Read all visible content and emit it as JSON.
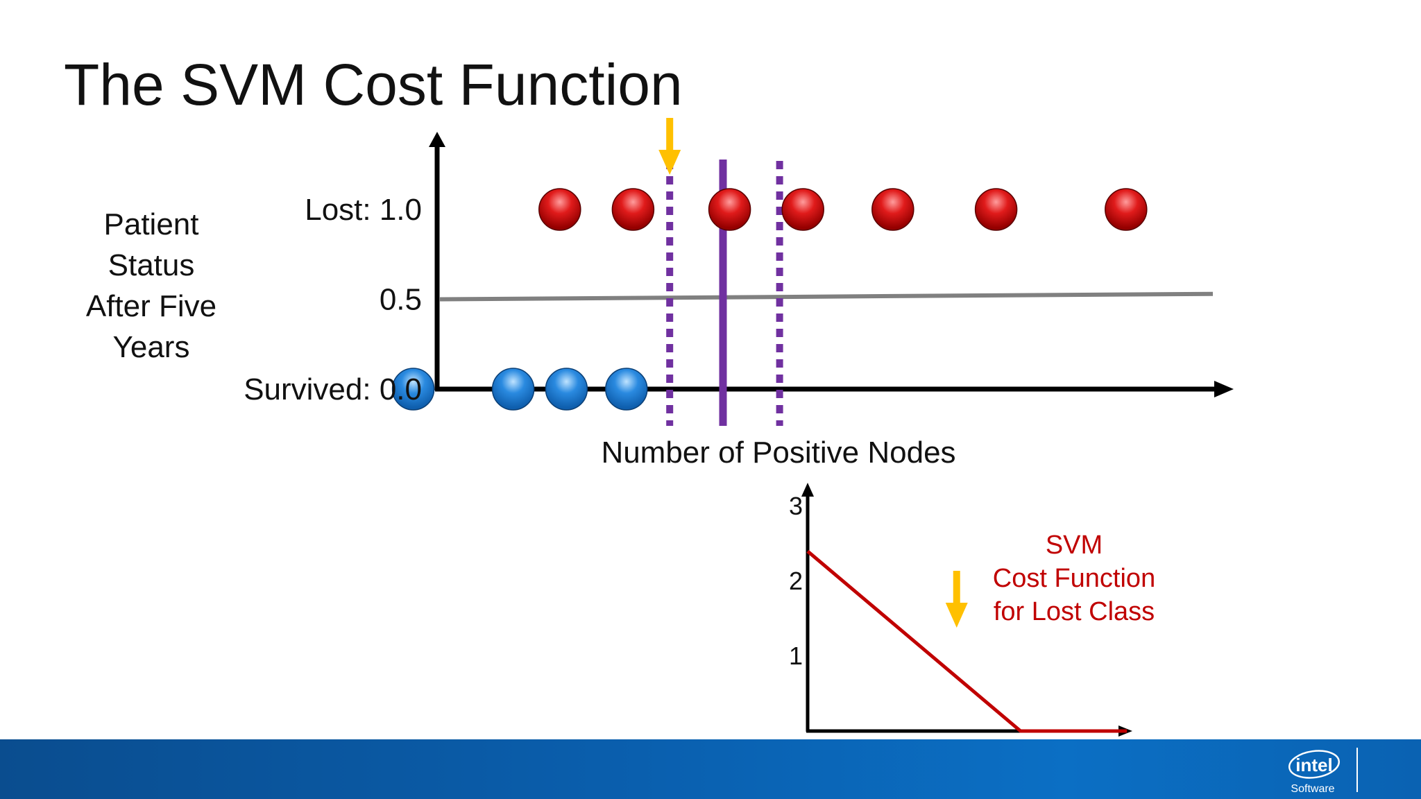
{
  "slide": {
    "title": "The SVM Cost Function"
  },
  "top_chart": {
    "ylabel_lines": [
      "Patient",
      "Status",
      "After Five",
      "Years"
    ],
    "xlabel": "Number of Positive Nodes",
    "ytick_labels": [
      {
        "value": 1.0,
        "label": "Lost: 1.0"
      },
      {
        "value": 0.5,
        "label": "0.5"
      },
      {
        "value": 0.0,
        "label": "Survived: 0.0"
      }
    ],
    "lost_points_x": [
      0.8,
      1.9,
      3.35,
      4.45,
      5.8,
      7.35,
      9.3
    ],
    "survived_points_x": [
      -1.4,
      0.1,
      0.9,
      1.8
    ],
    "decision_boundary_x": 3.25,
    "margin_lines_x": [
      2.45,
      4.1
    ],
    "threshold_line": {
      "y_start": 0.5,
      "y_end": 0.53
    },
    "arrow_x": 2.45,
    "colors": {
      "lost": "#cc1111",
      "survived": "#1d7fd6",
      "boundary": "#7030a0",
      "threshold": "#808080",
      "arrow": "#ffc000"
    }
  },
  "chart_data": {
    "type": "line",
    "title": "",
    "xlabel": "",
    "ylabel": "",
    "xlim": [
      -3,
      3
    ],
    "ylim": [
      0,
      3
    ],
    "xticks": [
      -3,
      -2,
      -1,
      0,
      1,
      2,
      3
    ],
    "yticks": [
      1,
      2,
      3
    ],
    "series": [
      {
        "x": [
          -3,
          -2,
          -1,
          0,
          1,
          2,
          3
        ],
        "y": [
          2.4,
          1.8,
          1.2,
          0.6,
          0.0,
          0.0,
          0.0
        ]
      }
    ],
    "annotation_lines": [
      "SVM",
      "Cost Function",
      "for Lost Class"
    ],
    "arrow_x": -0.2,
    "colors": {
      "line": "#c00000",
      "annotation": "#c00000",
      "arrow": "#ffc000"
    }
  },
  "footer": {
    "logo_text": "intel",
    "logo_subtext": "Software"
  }
}
